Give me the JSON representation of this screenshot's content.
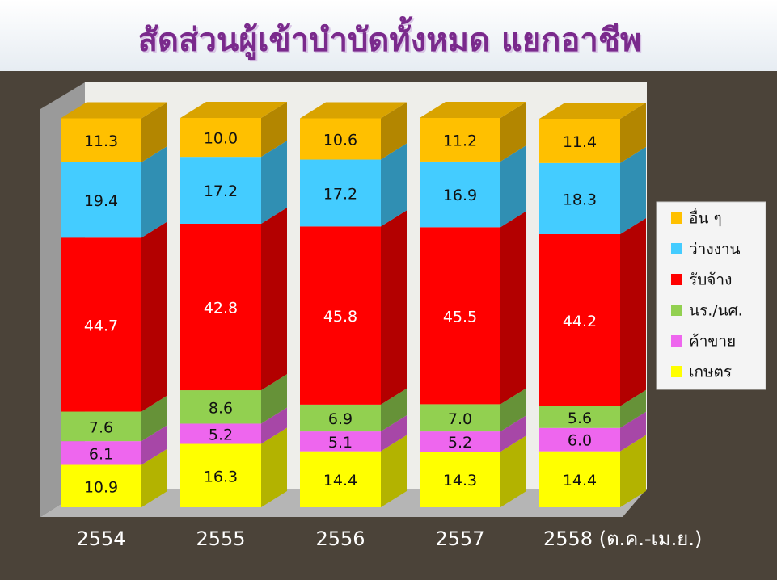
{
  "chart_data": {
    "type": "bar3d_stacked",
    "title": "สัดส่วนผู้เข้าบำบัดทั้งหมด แยกอาชีพ",
    "categories": [
      "2554",
      "2555",
      "2556",
      "2557",
      "2558 (ต.ค.-เม.ย.)"
    ],
    "series": [
      {
        "name": "เกษตร",
        "color": "#ffff00",
        "values": [
          10.9,
          16.3,
          14.4,
          14.3,
          14.4
        ],
        "value_labels": [
          "10.9",
          "16.3",
          "14.4",
          "14.3",
          "14.4"
        ]
      },
      {
        "name": "ค้าขาย",
        "color": "#ee66ee",
        "values": [
          6.1,
          5.2,
          5.1,
          5.2,
          6.0
        ],
        "value_labels": [
          "6.1",
          "5.2",
          "5.1",
          "5.2",
          "6.0"
        ]
      },
      {
        "name": "นร./นศ.",
        "color": "#92d050",
        "values": [
          7.6,
          8.6,
          6.9,
          7.0,
          5.6
        ],
        "value_labels": [
          "7.6",
          "8.6",
          "6.9",
          "7.0",
          "5.6"
        ]
      },
      {
        "name": "รับจ้าง",
        "color": "#ff0000",
        "values": [
          44.7,
          42.8,
          45.8,
          45.5,
          44.2
        ],
        "value_labels": [
          "44.7",
          "42.8",
          "45.8",
          "45.5",
          "44.2"
        ]
      },
      {
        "name": "ว่างงาน",
        "color": "#44ccff",
        "values": [
          19.4,
          17.2,
          17.2,
          16.9,
          18.3
        ],
        "value_labels": [
          "19.4",
          "17.2",
          "17.2",
          "16.9",
          "18.3"
        ]
      },
      {
        "name": "อื่น ๆ",
        "color": "#ffc000",
        "values": [
          11.3,
          10.0,
          10.6,
          11.2,
          11.4
        ],
        "value_labels": [
          "11.3",
          "10.0",
          "10.6",
          "11.2",
          "11.4"
        ]
      }
    ],
    "legend": "right"
  }
}
